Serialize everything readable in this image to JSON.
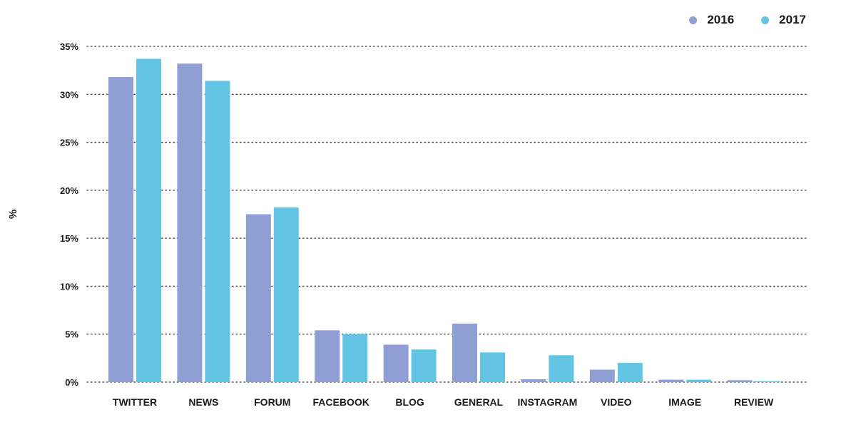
{
  "chart_data": {
    "type": "bar",
    "title": "",
    "xlabel": "",
    "ylabel": "%",
    "ylim": [
      0,
      35
    ],
    "yticks": [
      0,
      5,
      10,
      15,
      20,
      25,
      30,
      35
    ],
    "ytick_labels": [
      "0%",
      "5%",
      "10%",
      "15%",
      "20%",
      "25%",
      "30%",
      "35%"
    ],
    "grid": "horizontal dotted",
    "legend_position": "top-right",
    "categories": [
      "TWITTER",
      "NEWS",
      "FORUM",
      "FACEBOOK",
      "BLOG",
      "GENERAL",
      "INSTAGRAM",
      "VIDEO",
      "IMAGE",
      "REVIEW"
    ],
    "series": [
      {
        "name": "2016",
        "color": "#8f9fd3",
        "values": [
          31.8,
          33.2,
          17.5,
          5.4,
          3.9,
          6.1,
          0.3,
          1.3,
          0.25,
          0.2
        ]
      },
      {
        "name": "2017",
        "color": "#63c4e4",
        "values": [
          33.7,
          31.4,
          18.2,
          5.0,
          3.4,
          3.1,
          2.8,
          2.0,
          0.25,
          0.1
        ]
      }
    ]
  }
}
